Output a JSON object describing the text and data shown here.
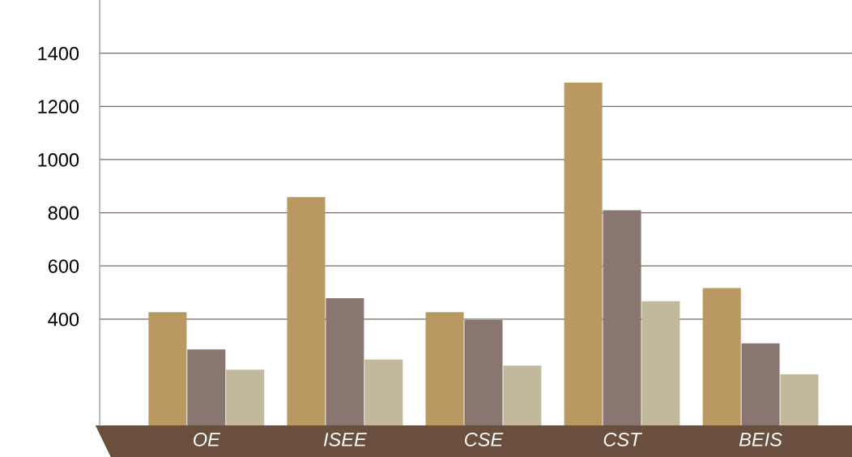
{
  "chart_data": {
    "type": "bar",
    "categories": [
      "OE",
      "ISEE",
      "CSE",
      "CST",
      "BEIS"
    ],
    "series": [
      {
        "color": "#b99862",
        "values": [
          426,
          859,
          426,
          1289,
          517
        ]
      },
      {
        "color": "#8a7670",
        "values": [
          286,
          479,
          397,
          809,
          309
        ]
      },
      {
        "color": "#c2b99c",
        "values": [
          210,
          248,
          225,
          467,
          192
        ]
      }
    ],
    "ylim": [
      0,
      1600
    ],
    "yticks": [
      400,
      600,
      800,
      1000,
      1200,
      1400
    ],
    "grid": "y"
  }
}
